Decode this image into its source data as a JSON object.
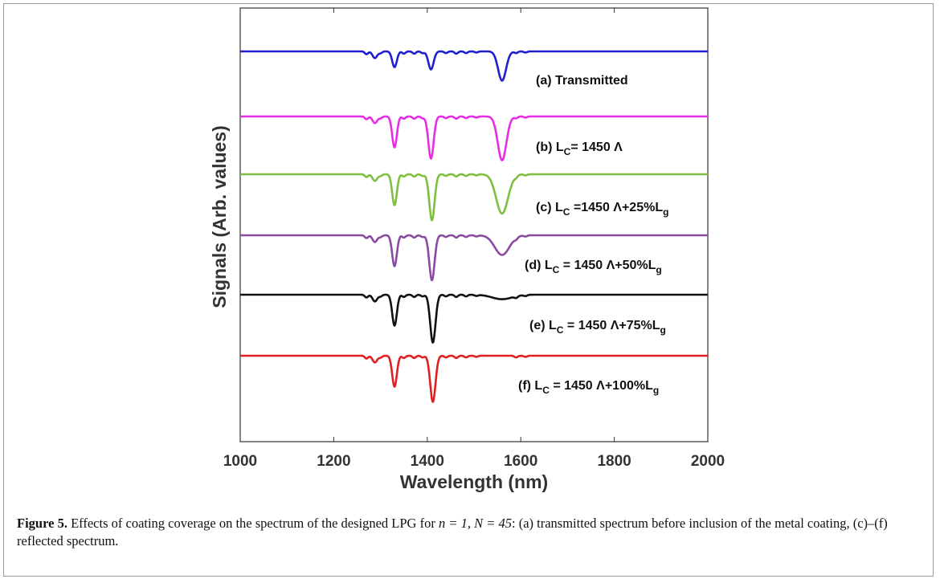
{
  "chart_data": {
    "type": "line",
    "xlabel": "Wavelength (nm)",
    "ylabel": "Signals (Arb. values)",
    "xlim": [
      1000,
      2000
    ],
    "xticks": [
      "1000",
      "1200",
      "1400",
      "1600",
      "1800",
      "2000"
    ],
    "y_axis_ticks_labeled": false,
    "grid": false,
    "legend": "none",
    "dips_common": [
      {
        "x": 1270,
        "w": 5,
        "depth": 0.05
      },
      {
        "x": 1288,
        "w": 7,
        "depth": 0.12
      }
    ],
    "ripple": [
      {
        "x": 1300,
        "depth": 0.03
      },
      {
        "x": 1350,
        "depth": 0.04
      },
      {
        "x": 1372,
        "depth": 0.04
      },
      {
        "x": 1390,
        "depth": 0.03
      },
      {
        "x": 1440,
        "depth": 0.03
      },
      {
        "x": 1462,
        "depth": 0.04
      },
      {
        "x": 1483,
        "depth": 0.03
      },
      {
        "x": 1505,
        "depth": 0.02
      },
      {
        "x": 1590,
        "depth": 0.03
      },
      {
        "x": 1610,
        "depth": 0.02
      }
    ],
    "series": [
      {
        "label_parts": [
          "(a) Transmitted"
        ],
        "color": "#1f1fd0",
        "dips": [
          {
            "x": 1330,
            "w": 7,
            "depth": 0.28
          },
          {
            "x": 1408,
            "w": 8,
            "depth": 0.32
          },
          {
            "x": 1560,
            "w": 12,
            "depth": 0.52
          }
        ]
      },
      {
        "label_parts": [
          "(b) L",
          "C",
          "= 1450 Λ"
        ],
        "color": "#e62ce6",
        "dips": [
          {
            "x": 1330,
            "w": 7,
            "depth": 0.55
          },
          {
            "x": 1408,
            "w": 8,
            "depth": 0.75
          },
          {
            "x": 1560,
            "w": 13,
            "depth": 0.78
          }
        ]
      },
      {
        "label_parts": [
          "(c) L",
          "C",
          " =1450 Λ+25%L",
          "g"
        ],
        "color": "#7fbf3f",
        "dips": [
          {
            "x": 1330,
            "w": 7,
            "depth": 0.55
          },
          {
            "x": 1410,
            "w": 8,
            "depth": 0.82
          },
          {
            "x": 1560,
            "w": 18,
            "depth": 0.7
          }
        ]
      },
      {
        "label_parts": [
          "(d) L",
          "C",
          " = 1450 Λ+50%L",
          "g"
        ],
        "color": "#8a4a9f",
        "dips": [
          {
            "x": 1330,
            "w": 7,
            "depth": 0.55
          },
          {
            "x": 1410,
            "w": 8,
            "depth": 0.8
          },
          {
            "x": 1560,
            "w": 22,
            "depth": 0.35
          }
        ]
      },
      {
        "label_parts": [
          "(e) L",
          "C",
          " = 1450 Λ+75%L",
          "g"
        ],
        "color": "#111111",
        "dips": [
          {
            "x": 1330,
            "w": 7,
            "depth": 0.55
          },
          {
            "x": 1412,
            "w": 8,
            "depth": 0.85
          },
          {
            "x": 1560,
            "w": 30,
            "depth": 0.08
          }
        ]
      },
      {
        "label_parts": [
          "(f) L",
          "C",
          " = 1450 Λ+100%L",
          "g"
        ],
        "color": "#e02020",
        "dips": [
          {
            "x": 1330,
            "w": 7,
            "depth": 0.55
          },
          {
            "x": 1412,
            "w": 8,
            "depth": 0.82
          }
        ]
      }
    ]
  },
  "caption": {
    "label": "Figure 5.",
    "text_before_n": " Effects of coating coverage on the spectrum of the designed LPG for ",
    "n_eq": "n = 1, N = 45",
    "text_after": ": (a) transmitted spectrum before inclusion of the metal coating, (c)–(f) reflected spectrum."
  }
}
